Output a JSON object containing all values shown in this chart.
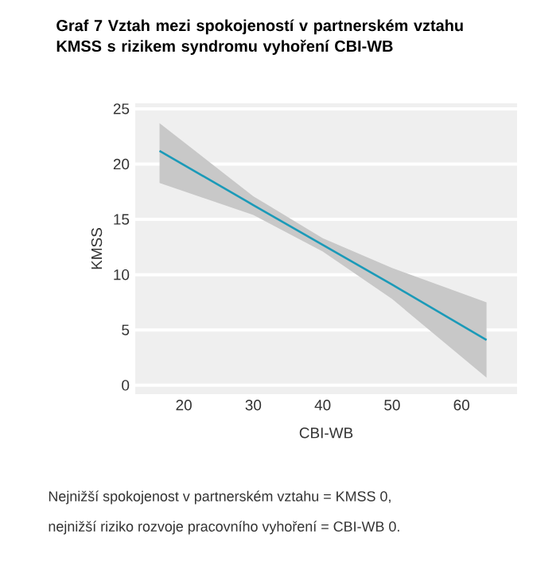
{
  "chart_data": {
    "type": "line",
    "title": "Graf 7 Vztah mezi spokojeností v partnerském vztahu KMSS s rizikem syndromu vyhoření CBI-WB",
    "xlabel": "CBI-WB",
    "ylabel": "KMSS",
    "x": [
      16.5,
      30,
      40,
      50,
      63.6
    ],
    "series": [
      {
        "color": "#1b9ab8",
        "values": [
          21.2,
          16.3,
          12.7,
          9.1,
          4.1
        ],
        "lower": [
          18.3,
          15.4,
          12.1,
          7.8,
          0.7
        ],
        "upper": [
          23.7,
          17.1,
          13.3,
          10.6,
          7.5
        ]
      }
    ],
    "xlim": [
      13,
      68
    ],
    "ylim": [
      -0.8,
      25.5
    ],
    "xticks": [
      20,
      30,
      40,
      50,
      60
    ],
    "yticks": [
      0,
      5,
      10,
      15,
      20,
      25
    ],
    "grid": "y",
    "annotations": [
      "Nejnižší spokojenost v partnerském vztahu = KMSS 0,",
      "nejnižší riziko rozvoje pracovního vyhoření = CBI-WB 0."
    ]
  }
}
